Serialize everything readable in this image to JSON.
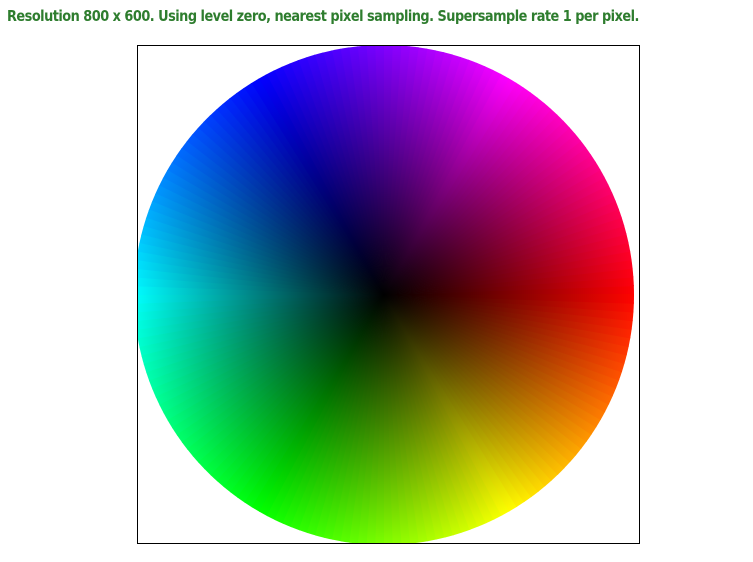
{
  "header": {
    "status_text": "Resolution 800 x 600. Using level zero, nearest pixel sampling. Supersample rate 1 per pixel.",
    "status_color": "#2e7d2e"
  },
  "canvas": {
    "border_color": "#000000",
    "background": "#ffffff",
    "wheel": {
      "content": "color-wheel",
      "hue_start_color": "#ff0000",
      "hue_stops": [
        "#ff0000",
        "#ff00ff",
        "#0000ff",
        "#00ffff",
        "#00ff00",
        "#ffff00",
        "#ff0000"
      ],
      "center_color": "#000000"
    }
  }
}
